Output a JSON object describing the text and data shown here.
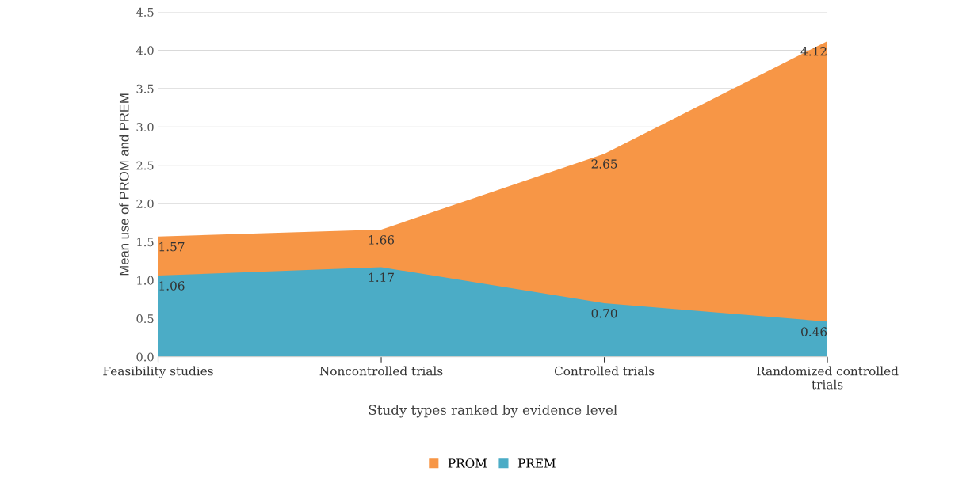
{
  "chart_data": {
    "type": "area",
    "xlabel": "Study types ranked by evidence level",
    "ylabel": "Mean use of PROM and PREM",
    "categories": [
      "Feasibility studies",
      "Noncontrolled trials",
      "Controlled trials",
      "Randomized controlled\ntrials"
    ],
    "series": [
      {
        "name": "PROM",
        "color": "#f79646",
        "values": [
          1.57,
          1.66,
          2.65,
          4.12
        ],
        "value_labels": [
          "1.57",
          "1.66",
          "2.65",
          "4.12"
        ]
      },
      {
        "name": "PREM",
        "color": "#4bacc6",
        "values": [
          1.06,
          1.17,
          0.7,
          0.46
        ],
        "value_labels": [
          "1.06",
          "1.17",
          "0.70",
          "0.46"
        ]
      }
    ],
    "ylim": [
      0,
      4.5
    ],
    "yticks": [
      "0.0",
      "0.5",
      "1.0",
      "1.5",
      "2.0",
      "2.5",
      "3.0",
      "3.5",
      "4.0",
      "4.5"
    ],
    "grid": "y",
    "legend": "bottom"
  }
}
